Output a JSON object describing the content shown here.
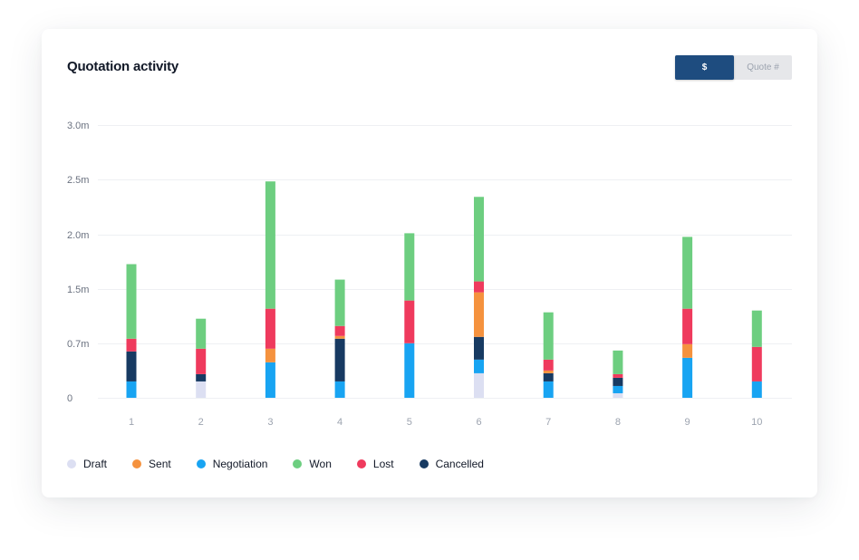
{
  "card": {
    "title": "Quotation activity",
    "toggle": {
      "dollar_label": "$",
      "quote_label": "Quote #"
    }
  },
  "colors": {
    "Draft": "#dcdff2",
    "Sent": "#f5923e",
    "Negotiation": "#18a4f2",
    "Won": "#6dce80",
    "Lost": "#ef3a5d",
    "Cancelled": "#173a62"
  },
  "chart_data": {
    "type": "bar",
    "stacked": true,
    "categories": [
      "1",
      "2",
      "3",
      "4",
      "5",
      "6",
      "7",
      "8",
      "9",
      "10"
    ],
    "y_tick_labels": [
      "0",
      "0.7m",
      "1.5m",
      "2.0m",
      "2.5m",
      "3.0m"
    ],
    "ylim": [
      0,
      3.0
    ],
    "grid": true,
    "legend_position": "bottom-left",
    "series": [
      {
        "name": "Draft",
        "values": [
          0,
          0.18,
          0,
          0,
          0,
          0.27,
          0,
          0.05,
          0,
          0
        ]
      },
      {
        "name": "Sent",
        "values": [
          0,
          0,
          0.15,
          0.03,
          0,
          0.49,
          0.03,
          0,
          0.15,
          0
        ]
      },
      {
        "name": "Negotiation",
        "values": [
          0.18,
          0,
          0.39,
          0.18,
          0.6,
          0.15,
          0.18,
          0.08,
          0.44,
          0.18
        ]
      },
      {
        "name": "Won",
        "values": [
          0.82,
          0.33,
          1.4,
          0.51,
          0.74,
          0.93,
          0.52,
          0.26,
          0.79,
          0.4
        ]
      },
      {
        "name": "Lost",
        "values": [
          0.14,
          0.28,
          0.44,
          0.11,
          0.47,
          0.12,
          0.12,
          0.04,
          0.39,
          0.38
        ]
      },
      {
        "name": "Cancelled",
        "values": [
          0.33,
          0.08,
          0,
          0.47,
          0,
          0.25,
          0.09,
          0.09,
          0,
          0
        ]
      }
    ],
    "stack_order": [
      "Draft",
      "Negotiation",
      "Cancelled",
      "Sent",
      "Lost",
      "Won"
    ]
  }
}
